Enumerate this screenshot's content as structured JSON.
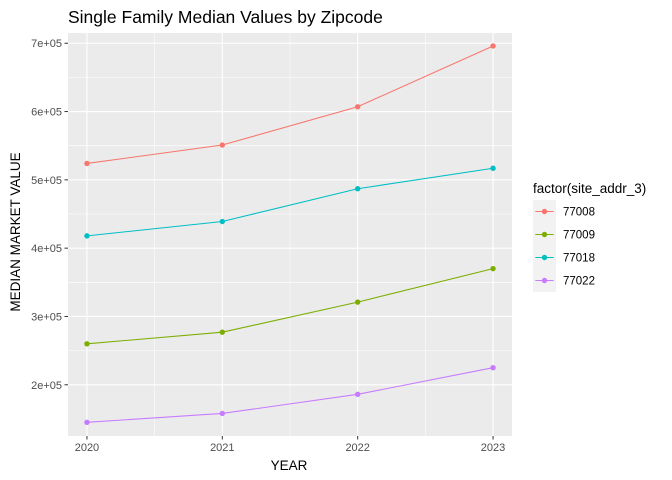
{
  "chart_data": {
    "type": "line",
    "title": "Single Family Median Values by Zipcode",
    "xlabel": "YEAR",
    "ylabel": "MEDIAN MARKET VALUE",
    "x": [
      2020,
      2021,
      2022,
      2023
    ],
    "x_tick_labels": [
      "2020",
      "2021",
      "2022",
      "2023"
    ],
    "xlim": [
      2019.86,
      2023.14
    ],
    "ylim": [
      125000,
      715000
    ],
    "y_ticks": [
      200000,
      300000,
      400000,
      500000,
      600000,
      700000
    ],
    "y_tick_labels": [
      "2e+05",
      "3e+05",
      "4e+05",
      "5e+05",
      "6e+05",
      "7e+05"
    ],
    "grid": true,
    "legend_position": "right",
    "legend_title": "factor(site_addr_3)",
    "series": [
      {
        "name": "77008",
        "color": "#F8766D",
        "values": [
          524000,
          551000,
          607000,
          696000
        ]
      },
      {
        "name": "77009",
        "color": "#7CAE00",
        "values": [
          260000,
          277000,
          321000,
          370000
        ]
      },
      {
        "name": "77018",
        "color": "#00BFC4",
        "values": [
          418000,
          439000,
          487000,
          517000
        ]
      },
      {
        "name": "77022",
        "color": "#C77CFF",
        "values": [
          145000,
          158000,
          186000,
          225000
        ]
      }
    ]
  }
}
